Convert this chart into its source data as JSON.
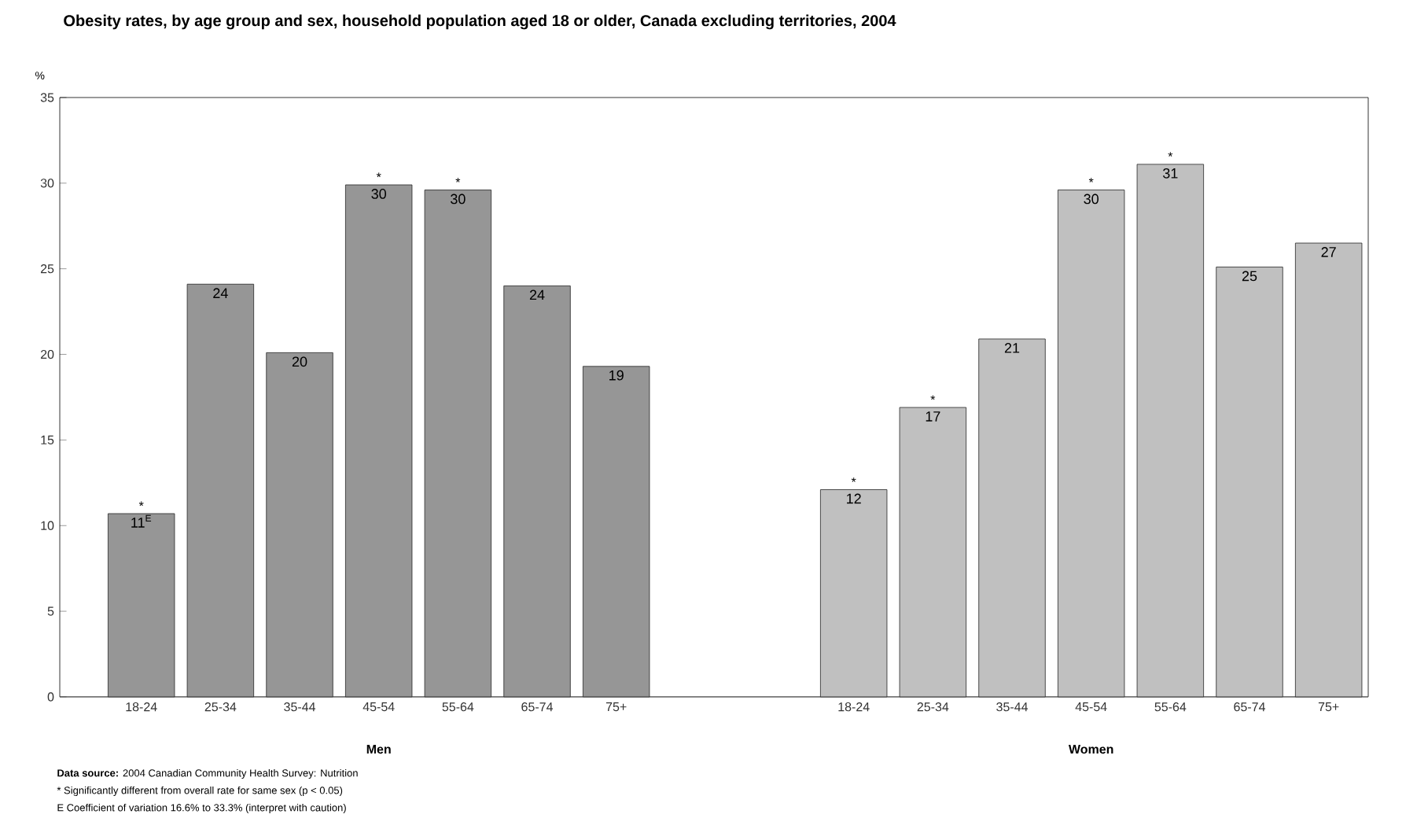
{
  "chart_data": {
    "type": "bar",
    "title": "Obesity rates, by age group and sex, household population aged 18 or older, Canada excluding territories, 2004",
    "ylabel": "%",
    "categories": [
      "18-24",
      "25-34",
      "35-44",
      "45-54",
      "55-64",
      "65-74",
      "75+",
      null,
      null,
      "18-24",
      "25-34",
      "35-44",
      "45-54",
      "55-64",
      "65-74",
      "75+"
    ],
    "values": [
      10.7,
      24.1,
      20.1,
      29.9,
      29.6,
      24.0,
      19.3,
      null,
      null,
      12.1,
      16.9,
      20.9,
      29.6,
      31.1,
      25.1,
      26.5
    ],
    "colors": [
      "#969696",
      "#969696",
      "#969696",
      "#969696",
      "#969696",
      "#969696",
      "#969696",
      null,
      null,
      "#c0c0c0",
      "#c0c0c0",
      "#c0c0c0",
      "#c0c0c0",
      "#c0c0c0",
      "#c0c0c0",
      "#c0c0c0"
    ],
    "value_labels": [
      "11$^{E}$",
      "24",
      "20",
      "30",
      "30",
      "24",
      "19",
      null,
      null,
      "12",
      "17",
      "21",
      "30",
      "31",
      "25",
      "27"
    ],
    "ylim": [
      0,
      35
    ],
    "yticks": [
      0,
      5,
      10,
      15,
      20,
      25,
      30,
      35
    ],
    "grid": false,
    "annotations": [
      "Men",
      "Women",
      "**Data source:** 2004 Canadian Community Health Survey: Nutrition",
      "* Significantly different from overall rate for same sex (p < 0.05)",
      "E Coefficient of variation 16.6% to 33.3% (interpret with caution)",
      "*",
      "*",
      "*",
      "*",
      "*",
      "*",
      "*"
    ]
  }
}
